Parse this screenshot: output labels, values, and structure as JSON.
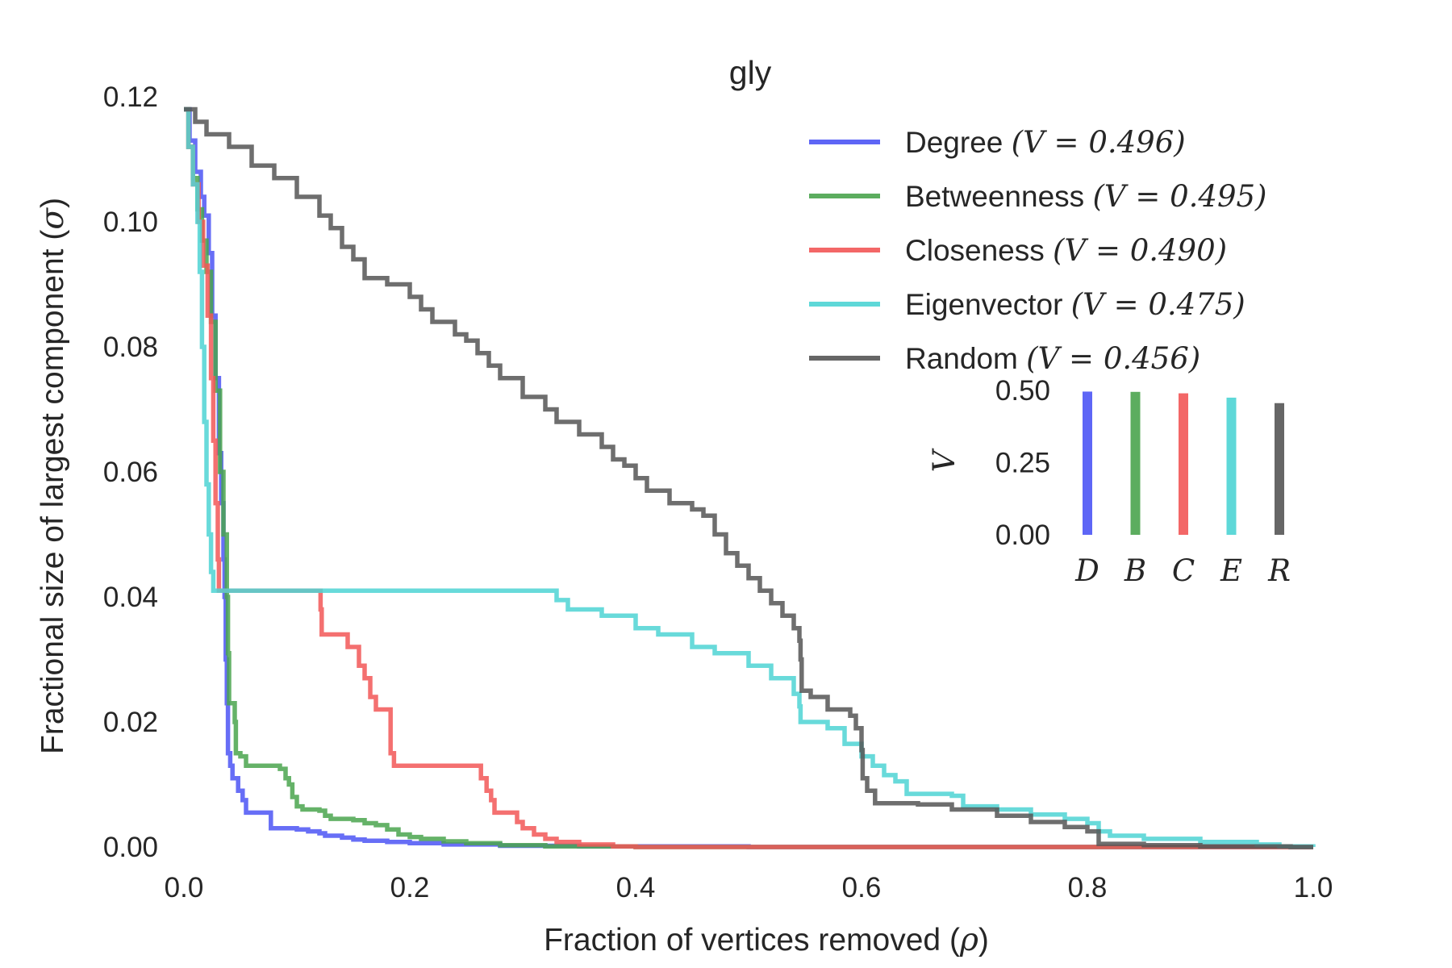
{
  "chart_data": [
    {
      "type": "line",
      "title": "gly",
      "xlabel_text": "Fraction of vertices removed (",
      "xlabel_symbol": "ρ",
      "xlabel_close": ")",
      "ylabel_text": "Fractional size of largest component (",
      "ylabel_symbol": "σ",
      "ylabel_close": ")",
      "xlim": [
        0,
        1.0
      ],
      "ylim": [
        0,
        0.12
      ],
      "xticks": [
        "0.0",
        "0.2",
        "0.4",
        "0.6",
        "0.8",
        "1.0"
      ],
      "yticks": [
        "0.00",
        "0.02",
        "0.04",
        "0.06",
        "0.08",
        "0.10",
        "0.12"
      ],
      "grid": false,
      "legend_position": "top-right",
      "series": [
        {
          "name": "Degree",
          "vlabel": "(V = 0.496)",
          "color": "#4c55f5",
          "points": [
            [
              0,
              0.118
            ],
            [
              0.005,
              0.113
            ],
            [
              0.01,
              0.108
            ],
            [
              0.015,
              0.104
            ],
            [
              0.018,
              0.101
            ],
            [
              0.022,
              0.095
            ],
            [
              0.025,
              0.085
            ],
            [
              0.028,
              0.075
            ],
            [
              0.031,
              0.063
            ],
            [
              0.033,
              0.055
            ],
            [
              0.035,
              0.046
            ],
            [
              0.036,
              0.04
            ],
            [
              0.037,
              0.03
            ],
            [
              0.038,
              0.023
            ],
            [
              0.039,
              0.015
            ],
            [
              0.041,
              0.013
            ],
            [
              0.043,
              0.011
            ],
            [
              0.048,
              0.009
            ],
            [
              0.052,
              0.0075
            ],
            [
              0.055,
              0.0055
            ],
            [
              0.075,
              0.0055
            ],
            [
              0.077,
              0.003
            ],
            [
              0.1,
              0.0028
            ],
            [
              0.11,
              0.0025
            ],
            [
              0.12,
              0.0022
            ],
            [
              0.125,
              0.0018
            ],
            [
              0.14,
              0.0015
            ],
            [
              0.15,
              0.0012
            ],
            [
              0.16,
              0.001
            ],
            [
              0.18,
              0.0008
            ],
            [
              0.2,
              0.0006
            ],
            [
              0.23,
              0.0004
            ],
            [
              0.28,
              0.0002
            ],
            [
              0.35,
              0.0001
            ],
            [
              0.5,
              0.0
            ],
            [
              1.0,
              0.0
            ]
          ]
        },
        {
          "name": "Betweenness",
          "vlabel": "(V = 0.495)",
          "color": "#4aa44e",
          "points": [
            [
              0,
              0.118
            ],
            [
              0.004,
              0.112
            ],
            [
              0.008,
              0.107
            ],
            [
              0.012,
              0.102
            ],
            [
              0.016,
              0.097
            ],
            [
              0.02,
              0.092
            ],
            [
              0.024,
              0.084
            ],
            [
              0.028,
              0.073
            ],
            [
              0.032,
              0.06
            ],
            [
              0.035,
              0.05
            ],
            [
              0.038,
              0.04
            ],
            [
              0.039,
              0.031
            ],
            [
              0.04,
              0.023
            ],
            [
              0.045,
              0.02
            ],
            [
              0.046,
              0.015
            ],
            [
              0.05,
              0.0145
            ],
            [
              0.055,
              0.013
            ],
            [
              0.08,
              0.013
            ],
            [
              0.085,
              0.0125
            ],
            [
              0.09,
              0.011
            ],
            [
              0.093,
              0.01
            ],
            [
              0.096,
              0.008
            ],
            [
              0.1,
              0.0065
            ],
            [
              0.105,
              0.006
            ],
            [
              0.12,
              0.0058
            ],
            [
              0.125,
              0.005
            ],
            [
              0.13,
              0.0045
            ],
            [
              0.15,
              0.0043
            ],
            [
              0.16,
              0.0038
            ],
            [
              0.17,
              0.0035
            ],
            [
              0.18,
              0.0028
            ],
            [
              0.19,
              0.002
            ],
            [
              0.2,
              0.0016
            ],
            [
              0.21,
              0.0013
            ],
            [
              0.23,
              0.0009
            ],
            [
              0.25,
              0.0006
            ],
            [
              0.28,
              0.0003
            ],
            [
              0.32,
              0.0001
            ],
            [
              0.4,
              0.0
            ],
            [
              1.0,
              0.0
            ]
          ]
        },
        {
          "name": "Closeness",
          "vlabel": "(V = 0.490)",
          "color": "#f25757",
          "points": [
            [
              0,
              0.118
            ],
            [
              0.004,
              0.112
            ],
            [
              0.008,
              0.106
            ],
            [
              0.013,
              0.1
            ],
            [
              0.017,
              0.093
            ],
            [
              0.021,
              0.085
            ],
            [
              0.024,
              0.075
            ],
            [
              0.026,
              0.065
            ],
            [
              0.028,
              0.055
            ],
            [
              0.03,
              0.046
            ],
            [
              0.031,
              0.041
            ],
            [
              0.12,
              0.041
            ],
            [
              0.121,
              0.038
            ],
            [
              0.122,
              0.034
            ],
            [
              0.14,
              0.034
            ],
            [
              0.145,
              0.032
            ],
            [
              0.155,
              0.029
            ],
            [
              0.16,
              0.027
            ],
            [
              0.165,
              0.024
            ],
            [
              0.17,
              0.022
            ],
            [
              0.18,
              0.022
            ],
            [
              0.183,
              0.015
            ],
            [
              0.186,
              0.013
            ],
            [
              0.26,
              0.013
            ],
            [
              0.263,
              0.011
            ],
            [
              0.268,
              0.009
            ],
            [
              0.272,
              0.0075
            ],
            [
              0.275,
              0.0055
            ],
            [
              0.29,
              0.0055
            ],
            [
              0.295,
              0.004
            ],
            [
              0.3,
              0.003
            ],
            [
              0.31,
              0.002
            ],
            [
              0.32,
              0.0013
            ],
            [
              0.33,
              0.0008
            ],
            [
              0.35,
              0.0004
            ],
            [
              0.38,
              0.0001
            ],
            [
              0.4,
              0.0
            ],
            [
              1.0,
              0.0
            ]
          ]
        },
        {
          "name": "Eigenvector",
          "vlabel": "(V = 0.475)",
          "color": "#4dd4d4",
          "points": [
            [
              0,
              0.118
            ],
            [
              0.004,
              0.112
            ],
            [
              0.008,
              0.106
            ],
            [
              0.012,
              0.1
            ],
            [
              0.014,
              0.092
            ],
            [
              0.016,
              0.08
            ],
            [
              0.018,
              0.068
            ],
            [
              0.02,
              0.058
            ],
            [
              0.022,
              0.05
            ],
            [
              0.024,
              0.044
            ],
            [
              0.026,
              0.041
            ],
            [
              0.31,
              0.041
            ],
            [
              0.33,
              0.0395
            ],
            [
              0.34,
              0.038
            ],
            [
              0.37,
              0.037
            ],
            [
              0.4,
              0.035
            ],
            [
              0.42,
              0.034
            ],
            [
              0.45,
              0.032
            ],
            [
              0.47,
              0.031
            ],
            [
              0.5,
              0.029
            ],
            [
              0.52,
              0.027
            ],
            [
              0.54,
              0.0245
            ],
            [
              0.545,
              0.0225
            ],
            [
              0.546,
              0.02
            ],
            [
              0.57,
              0.019
            ],
            [
              0.585,
              0.0165
            ],
            [
              0.6,
              0.0145
            ],
            [
              0.61,
              0.013
            ],
            [
              0.62,
              0.0115
            ],
            [
              0.63,
              0.0105
            ],
            [
              0.64,
              0.0085
            ],
            [
              0.68,
              0.0082
            ],
            [
              0.69,
              0.0065
            ],
            [
              0.72,
              0.006
            ],
            [
              0.75,
              0.0052
            ],
            [
              0.78,
              0.0045
            ],
            [
              0.8,
              0.0038
            ],
            [
              0.81,
              0.0025
            ],
            [
              0.82,
              0.0018
            ],
            [
              0.85,
              0.0013
            ],
            [
              0.9,
              0.0008
            ],
            [
              0.95,
              0.0004
            ],
            [
              0.97,
              0.0001
            ],
            [
              1.0,
              0.0
            ]
          ]
        },
        {
          "name": "Random",
          "vlabel": "(V = 0.456)",
          "color": "#555555",
          "points": [
            [
              0,
              0.118
            ],
            [
              0.01,
              0.116
            ],
            [
              0.02,
              0.114
            ],
            [
              0.04,
              0.112
            ],
            [
              0.06,
              0.109
            ],
            [
              0.08,
              0.107
            ],
            [
              0.1,
              0.104
            ],
            [
              0.12,
              0.101
            ],
            [
              0.13,
              0.099
            ],
            [
              0.14,
              0.096
            ],
            [
              0.15,
              0.094
            ],
            [
              0.16,
              0.091
            ],
            [
              0.18,
              0.09
            ],
            [
              0.2,
              0.088
            ],
            [
              0.21,
              0.086
            ],
            [
              0.22,
              0.084
            ],
            [
              0.24,
              0.082
            ],
            [
              0.25,
              0.081
            ],
            [
              0.26,
              0.079
            ],
            [
              0.27,
              0.077
            ],
            [
              0.28,
              0.075
            ],
            [
              0.3,
              0.072
            ],
            [
              0.32,
              0.07
            ],
            [
              0.33,
              0.068
            ],
            [
              0.35,
              0.066
            ],
            [
              0.37,
              0.064
            ],
            [
              0.38,
              0.062
            ],
            [
              0.39,
              0.061
            ],
            [
              0.4,
              0.059
            ],
            [
              0.41,
              0.057
            ],
            [
              0.43,
              0.055
            ],
            [
              0.45,
              0.054
            ],
            [
              0.46,
              0.053
            ],
            [
              0.47,
              0.05
            ],
            [
              0.48,
              0.047
            ],
            [
              0.49,
              0.045
            ],
            [
              0.5,
              0.043
            ],
            [
              0.51,
              0.041
            ],
            [
              0.52,
              0.039
            ],
            [
              0.53,
              0.037
            ],
            [
              0.54,
              0.035
            ],
            [
              0.545,
              0.033
            ],
            [
              0.546,
              0.03
            ],
            [
              0.547,
              0.025
            ],
            [
              0.555,
              0.024
            ],
            [
              0.57,
              0.022
            ],
            [
              0.59,
              0.021
            ],
            [
              0.595,
              0.019
            ],
            [
              0.6,
              0.0155
            ],
            [
              0.601,
              0.011
            ],
            [
              0.605,
              0.009
            ],
            [
              0.612,
              0.007
            ],
            [
              0.65,
              0.0068
            ],
            [
              0.68,
              0.006
            ],
            [
              0.72,
              0.005
            ],
            [
              0.75,
              0.004
            ],
            [
              0.78,
              0.0032
            ],
            [
              0.8,
              0.0025
            ],
            [
              0.81,
              0.0005
            ],
            [
              0.85,
              0.0003
            ],
            [
              0.9,
              0.0001
            ],
            [
              0.98,
              0.0
            ],
            [
              1.0,
              0.0
            ]
          ]
        }
      ]
    },
    {
      "type": "bar",
      "ylabel": "V",
      "ylim": [
        0,
        0.5
      ],
      "yticks": [
        "0.00",
        "0.25",
        "0.50"
      ],
      "categories": [
        "D",
        "B",
        "C",
        "E",
        "R"
      ],
      "values": [
        0.496,
        0.495,
        0.49,
        0.475,
        0.456
      ],
      "colors": [
        "#4c55f5",
        "#4aa44e",
        "#f25757",
        "#4dd4d4",
        "#555555"
      ]
    }
  ]
}
